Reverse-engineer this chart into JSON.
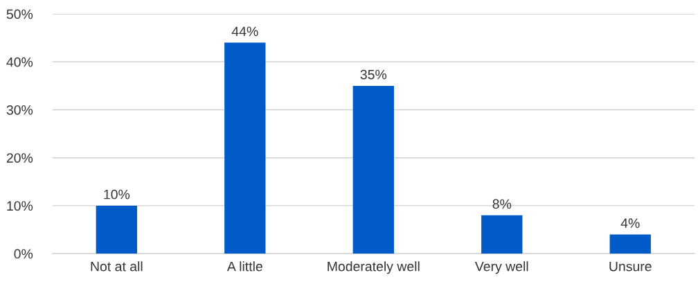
{
  "chart_data": {
    "type": "bar",
    "categories": [
      "Not at all",
      "A little",
      "Moderately well",
      "Very well",
      "Unsure"
    ],
    "values": [
      10,
      44,
      35,
      8,
      4
    ],
    "value_labels": [
      "10%",
      "44%",
      "35%",
      "8%",
      "4%"
    ],
    "color": "#005bc8",
    "ylim": [
      0,
      50
    ],
    "yticks": [
      {
        "value": 0,
        "label": "0%"
      },
      {
        "value": 10,
        "label": "10%"
      },
      {
        "value": 20,
        "label": "20%"
      },
      {
        "value": 30,
        "label": "30%"
      },
      {
        "value": 40,
        "label": "40%"
      },
      {
        "value": 50,
        "label": "50%"
      }
    ],
    "grid": "y",
    "legend": false
  }
}
